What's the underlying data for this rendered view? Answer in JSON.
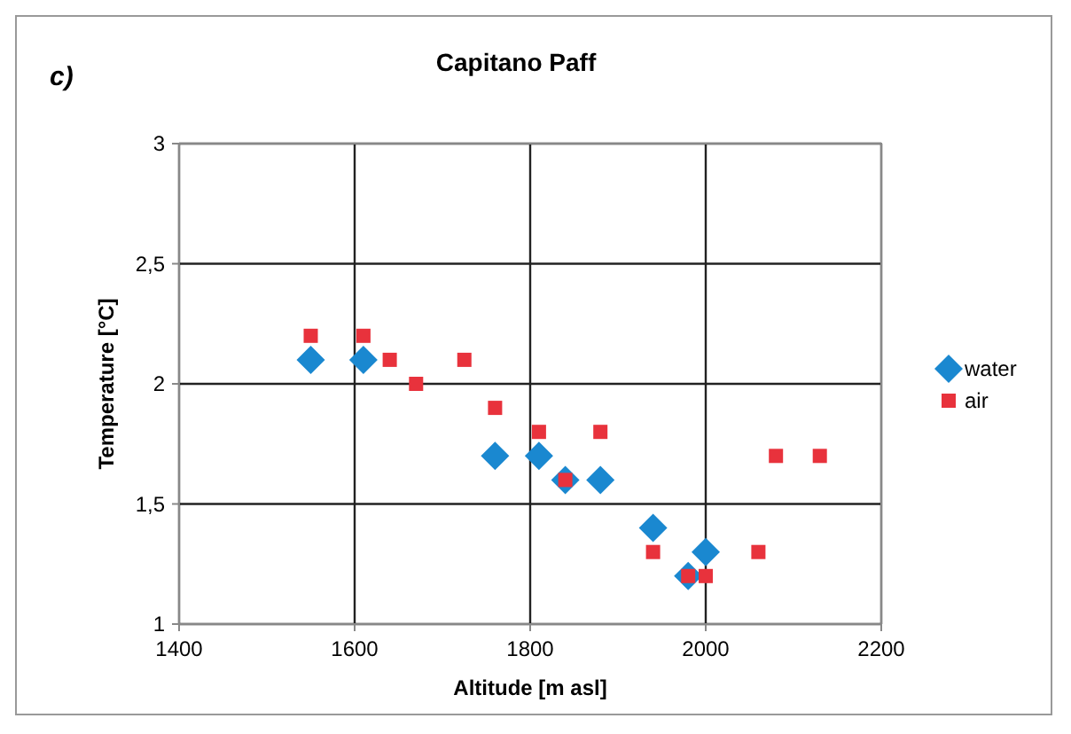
{
  "chart_data": {
    "type": "scatter",
    "title": "Capitano Paff",
    "xlabel": "Altitude [m asl]",
    "ylabel": "Temperature [°C]",
    "annotations": [
      "c)"
    ],
    "xlim": [
      1400,
      2200
    ],
    "xticks": [
      1400,
      1600,
      1800,
      2000,
      2200
    ],
    "ylim": [
      1,
      3
    ],
    "yticks": [
      1,
      {
        "value": 1.5,
        "label": "1,5"
      },
      2,
      {
        "value": 2.5,
        "label": "2,5"
      },
      3
    ],
    "grid": true,
    "legend": "right",
    "series": [
      {
        "name": "water",
        "color": "#1a88d0",
        "marker": "diamond",
        "x": [
          1550,
          1610,
          1760,
          1810,
          1840,
          1880,
          1940,
          2000,
          1980
        ],
        "values": [
          2.1,
          2.1,
          1.7,
          1.7,
          1.6,
          1.6,
          1.4,
          1.3,
          1.2
        ]
      },
      {
        "name": "air",
        "color": "#e8323c",
        "marker": "square",
        "x": [
          1550,
          1610,
          1640,
          1670,
          1725,
          1760,
          1810,
          1840,
          1880,
          1940,
          1980,
          2000,
          2060,
          2080,
          2130
        ],
        "values": [
          2.2,
          2.2,
          2.1,
          2.0,
          2.1,
          1.9,
          1.8,
          1.6,
          1.8,
          1.3,
          1.2,
          1.2,
          1.3,
          1.7,
          1.7
        ]
      }
    ]
  }
}
